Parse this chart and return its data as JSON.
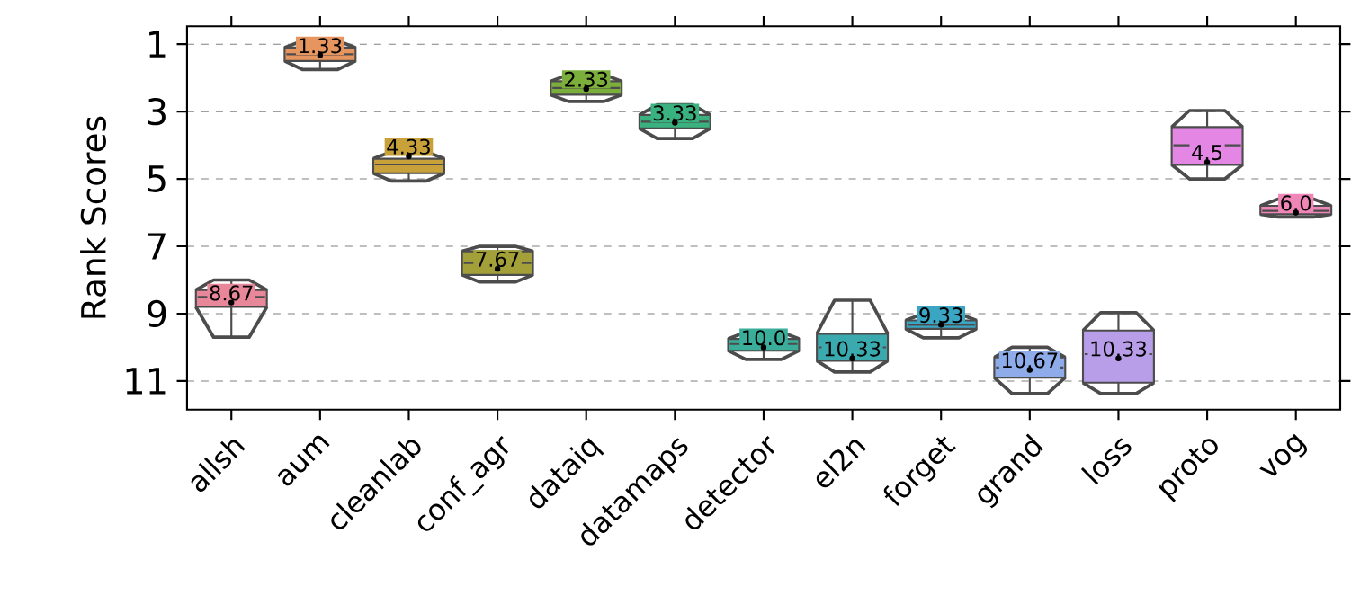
{
  "chart_data": {
    "type": "box",
    "ylabel": "Rank Scores",
    "categories": [
      "allsh",
      "aum",
      "cleanlab",
      "conf_agr",
      "dataiq",
      "datamaps",
      "detector",
      "el2n",
      "forget",
      "grand",
      "loss",
      "proto",
      "vog"
    ],
    "colors": [
      "#e8879a",
      "#e6955f",
      "#c9a13a",
      "#a3a03a",
      "#7cae3b",
      "#3ab27f",
      "#3aae9a",
      "#3aaaae",
      "#3aa6c4",
      "#8eacea",
      "#b89ee8",
      "#e386e4",
      "#f086b8"
    ],
    "boxes": [
      {
        "low": 8.0,
        "q1": 8.3,
        "median": 8.5,
        "q3": 8.8,
        "high": 9.7,
        "mean": 8.67
      },
      {
        "low": 0.9,
        "q1": 1.1,
        "median": 1.3,
        "q3": 1.5,
        "high": 1.75,
        "mean": 1.33
      },
      {
        "low": 4.2,
        "q1": 4.4,
        "median": 4.57,
        "q3": 4.83,
        "high": 5.06,
        "mean": 4.33
      },
      {
        "low": 7.0,
        "q1": 7.15,
        "median": 7.5,
        "q3": 7.85,
        "high": 8.06,
        "mean": 7.67
      },
      {
        "low": 1.9,
        "q1": 2.1,
        "median": 2.3,
        "q3": 2.5,
        "high": 2.7,
        "mean": 2.33
      },
      {
        "low": 2.8,
        "q1": 3.1,
        "median": 3.3,
        "q3": 3.5,
        "high": 3.8,
        "mean": 3.33
      },
      {
        "low": 9.55,
        "q1": 9.75,
        "median": 9.9,
        "q3": 10.1,
        "high": 10.36,
        "mean": 10.0
      },
      {
        "low": 8.6,
        "q1": 9.6,
        "median": 10.0,
        "q3": 10.4,
        "high": 10.73,
        "mean": 10.33
      },
      {
        "low": 9.0,
        "q1": 9.2,
        "median": 9.33,
        "q3": 9.45,
        "high": 9.72,
        "mean": 9.33
      },
      {
        "low": 10.0,
        "q1": 10.3,
        "median": 10.6,
        "q3": 10.9,
        "high": 11.37,
        "mean": 10.67
      },
      {
        "low": 8.97,
        "q1": 9.5,
        "median": 10.2,
        "q3": 11.05,
        "high": 11.37,
        "mean": 10.33
      },
      {
        "low": 2.97,
        "q1": 3.46,
        "median": 4.0,
        "q3": 4.58,
        "high": 5.0,
        "mean": 4.5
      },
      {
        "low": 5.6,
        "q1": 5.8,
        "median": 5.95,
        "q3": 6.05,
        "high": 6.13,
        "mean": 6.0
      }
    ],
    "value_labels": [
      "8.67",
      "1.33",
      "4.33",
      "7.67",
      "2.33",
      "3.33",
      "10.0",
      "10.33",
      "9.33",
      "10.67",
      "10.33",
      "4.5",
      "6.0"
    ],
    "ylim": [
      11.85,
      0.47
    ],
    "yticks": [
      1,
      3,
      5,
      7,
      9,
      11
    ],
    "grid": "y"
  }
}
